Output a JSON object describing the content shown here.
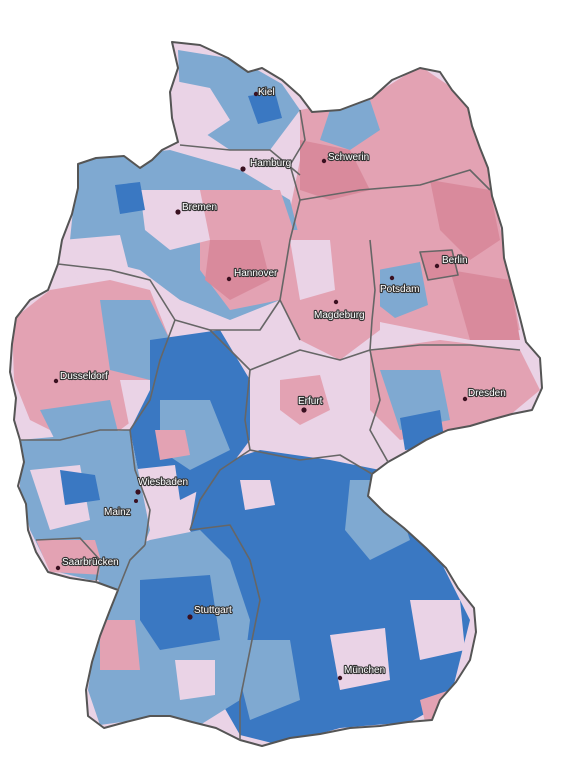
{
  "colors": {
    "dark_blue": "#3a78c2",
    "light_blue": "#7fa9d1",
    "pale_pink": "#ead3e6",
    "pink": "#e3a2b3",
    "dark_pink": "#d98a9c",
    "border": "#555555"
  },
  "cities": [
    {
      "id": "kiel",
      "label": "Kiel"
    },
    {
      "id": "hamburg",
      "label": "Hamburg"
    },
    {
      "id": "schwerin",
      "label": "Schwerin"
    },
    {
      "id": "bremen",
      "label": "Bremen"
    },
    {
      "id": "hannover",
      "label": "Hannover"
    },
    {
      "id": "berlin",
      "label": "Berlin"
    },
    {
      "id": "potsdam",
      "label": "Potsdam"
    },
    {
      "id": "magdeburg",
      "label": "Magdeburg"
    },
    {
      "id": "dusseldorf",
      "label": "Dusseldorf"
    },
    {
      "id": "erfurt",
      "label": "Erfurt"
    },
    {
      "id": "dresden",
      "label": "Dresden"
    },
    {
      "id": "wiesbaden",
      "label": "Wiesbaden"
    },
    {
      "id": "mainz",
      "label": "Mainz"
    },
    {
      "id": "saarbrucken",
      "label": "Saarbrücken"
    },
    {
      "id": "stuttgart",
      "label": "Stuttgart"
    },
    {
      "id": "munchen",
      "label": "München"
    }
  ]
}
